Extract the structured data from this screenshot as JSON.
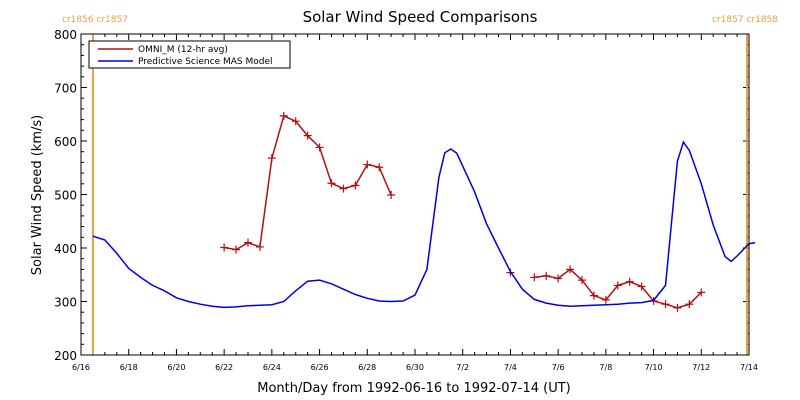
{
  "chart_data": {
    "type": "line",
    "title": "Solar Wind Speed Comparisons",
    "xlabel": "Month/Day from 1992-06-16 to 1992-07-14 (UT)",
    "ylabel": "Solar Wind Speed (km/s)",
    "xlim": [
      "1992-06-16",
      "1992-07-14"
    ],
    "ylim": [
      200,
      800
    ],
    "x_ticks": [
      {
        "date": "1992-06-16",
        "label": "6/16"
      },
      {
        "date": "1992-06-18",
        "label": "6/18"
      },
      {
        "date": "1992-06-20",
        "label": "6/20"
      },
      {
        "date": "1992-06-22",
        "label": "6/22"
      },
      {
        "date": "1992-06-24",
        "label": "6/24"
      },
      {
        "date": "1992-06-26",
        "label": "6/26"
      },
      {
        "date": "1992-06-28",
        "label": "6/28"
      },
      {
        "date": "1992-06-30",
        "label": "6/30"
      },
      {
        "date": "1992-07-02",
        "label": "7/2"
      },
      {
        "date": "1992-07-04",
        "label": "7/4"
      },
      {
        "date": "1992-07-06",
        "label": "7/6"
      },
      {
        "date": "1992-07-08",
        "label": "7/8"
      },
      {
        "date": "1992-07-10",
        "label": "7/10"
      },
      {
        "date": "1992-07-12",
        "label": "7/12"
      },
      {
        "date": "1992-07-14",
        "label": "7/14"
      }
    ],
    "y_ticks": [
      200,
      300,
      400,
      500,
      600,
      700,
      800
    ],
    "legend": "top-left",
    "grid": false,
    "carrington_markers": [
      {
        "date": "1992-06-16 12:00",
        "label": "cr1856 cr1857",
        "side": "left",
        "color": "#e8a040"
      },
      {
        "date": "1992-07-13 22:00",
        "label": "cr1857 cr1858",
        "side": "right",
        "color": "#e8a040"
      }
    ],
    "series": [
      {
        "name": "OMNI_M (12-hr avg)",
        "color": "#b01010",
        "marker": "+",
        "segments": [
          [
            [
              "1992-06-22 00:00",
              401
            ],
            [
              "1992-06-22 12:00",
              397
            ],
            [
              "1992-06-23 00:00",
              410
            ],
            [
              "1992-06-23 12:00",
              402
            ],
            [
              "1992-06-24 00:00",
              568
            ],
            [
              "1992-06-24 12:00",
              647
            ],
            [
              "1992-06-25 00:00",
              637
            ],
            [
              "1992-06-25 12:00",
              610
            ],
            [
              "1992-06-26 00:00",
              588
            ],
            [
              "1992-06-26 12:00",
              521
            ],
            [
              "1992-06-27 00:00",
              511
            ],
            [
              "1992-06-27 12:00",
              517
            ],
            [
              "1992-06-28 00:00",
              556
            ],
            [
              "1992-06-28 12:00",
              551
            ],
            [
              "1992-06-29 00:00",
              499
            ]
          ],
          [
            [
              "1992-07-04 00:00",
              354
            ]
          ],
          [
            [
              "1992-07-05 00:00",
              345
            ],
            [
              "1992-07-05 12:00",
              348
            ],
            [
              "1992-07-06 00:00",
              343
            ],
            [
              "1992-07-06 12:00",
              360
            ],
            [
              "1992-07-07 00:00",
              340
            ],
            [
              "1992-07-07 12:00",
              311
            ],
            [
              "1992-07-08 00:00",
              303
            ],
            [
              "1992-07-08 12:00",
              330
            ],
            [
              "1992-07-09 00:00",
              337
            ],
            [
              "1992-07-09 12:00",
              328
            ],
            [
              "1992-07-10 00:00",
              301
            ],
            [
              "1992-07-10 12:00",
              295
            ],
            [
              "1992-07-11 00:00",
              288
            ],
            [
              "1992-07-11 12:00",
              295
            ],
            [
              "1992-07-12 00:00",
              317
            ]
          ]
        ]
      },
      {
        "name": "Predictive Science MAS Model",
        "color": "#0000e0",
        "marker": "none",
        "points": [
          [
            "1992-06-16 12:00",
            422
          ],
          [
            "1992-06-17 00:00",
            415
          ],
          [
            "1992-06-17 12:00",
            390
          ],
          [
            "1992-06-18 00:00",
            362
          ],
          [
            "1992-06-18 12:00",
            345
          ],
          [
            "1992-06-19 00:00",
            330
          ],
          [
            "1992-06-19 12:00",
            320
          ],
          [
            "1992-06-20 00:00",
            307
          ],
          [
            "1992-06-20 12:00",
            300
          ],
          [
            "1992-06-21 00:00",
            295
          ],
          [
            "1992-06-21 12:00",
            291
          ],
          [
            "1992-06-22 00:00",
            289
          ],
          [
            "1992-06-22 12:00",
            290
          ],
          [
            "1992-06-23 00:00",
            292
          ],
          [
            "1992-06-23 12:00",
            293
          ],
          [
            "1992-06-24 00:00",
            294
          ],
          [
            "1992-06-24 12:00",
            300
          ],
          [
            "1992-06-25 00:00",
            320
          ],
          [
            "1992-06-25 12:00",
            338
          ],
          [
            "1992-06-26 00:00",
            340
          ],
          [
            "1992-06-26 12:00",
            333
          ],
          [
            "1992-06-27 00:00",
            323
          ],
          [
            "1992-06-27 12:00",
            313
          ],
          [
            "1992-06-28 00:00",
            306
          ],
          [
            "1992-06-28 12:00",
            301
          ],
          [
            "1992-06-29 00:00",
            300
          ],
          [
            "1992-06-29 12:00",
            301
          ],
          [
            "1992-06-30 00:00",
            312
          ],
          [
            "1992-06-30 12:00",
            360
          ],
          [
            "1992-07-01 00:00",
            532
          ],
          [
            "1992-07-01 06:00",
            578
          ],
          [
            "1992-07-01 12:00",
            585
          ],
          [
            "1992-07-01 18:00",
            577
          ],
          [
            "1992-07-02 00:00",
            553
          ],
          [
            "1992-07-02 12:00",
            505
          ],
          [
            "1992-07-03 00:00",
            445
          ],
          [
            "1992-07-03 12:00",
            400
          ],
          [
            "1992-07-04 00:00",
            356
          ],
          [
            "1992-07-04 12:00",
            323
          ],
          [
            "1992-07-05 00:00",
            304
          ],
          [
            "1992-07-05 12:00",
            297
          ],
          [
            "1992-07-06 00:00",
            293
          ],
          [
            "1992-07-06 12:00",
            291
          ],
          [
            "1992-07-07 00:00",
            292
          ],
          [
            "1992-07-07 12:00",
            293
          ],
          [
            "1992-07-08 00:00",
            294
          ],
          [
            "1992-07-08 12:00",
            295
          ],
          [
            "1992-07-09 00:00",
            297
          ],
          [
            "1992-07-09 12:00",
            298
          ],
          [
            "1992-07-10 00:00",
            302
          ],
          [
            "1992-07-10 12:00",
            330
          ],
          [
            "1992-07-11 00:00",
            562
          ],
          [
            "1992-07-11 06:00",
            598
          ],
          [
            "1992-07-11 12:00",
            582
          ],
          [
            "1992-07-12 00:00",
            520
          ],
          [
            "1992-07-12 12:00",
            443
          ],
          [
            "1992-07-13 00:00",
            384
          ],
          [
            "1992-07-13 06:00",
            375
          ],
          [
            "1992-07-13 12:00",
            385
          ],
          [
            "1992-07-14 00:00",
            408
          ],
          [
            "1992-07-14 06:00",
            410
          ]
        ]
      }
    ]
  }
}
